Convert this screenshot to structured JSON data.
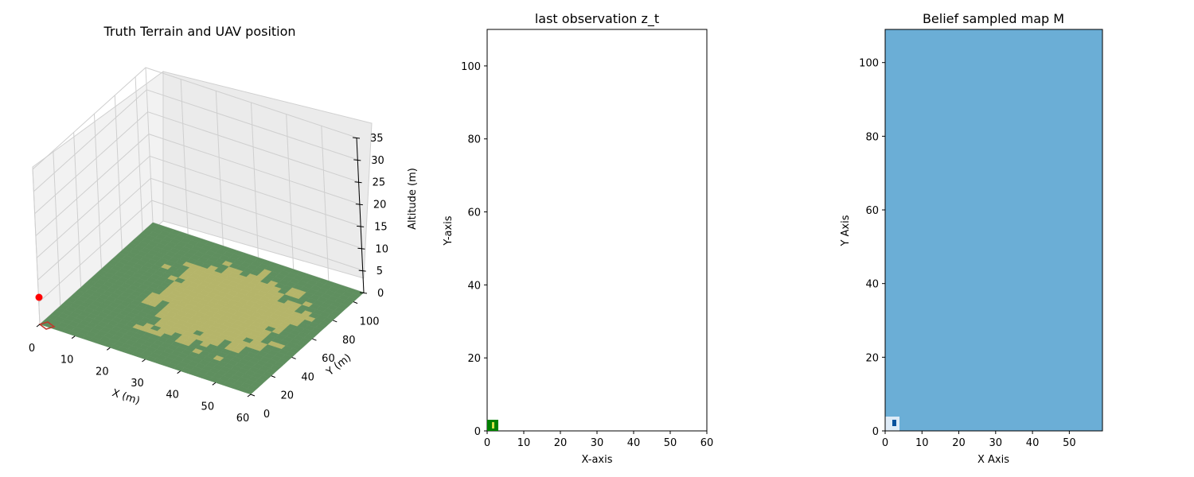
{
  "chart_data": [
    {
      "type": "surface3d",
      "title": "Truth Terrain and UAV position",
      "xlabel": "X (m)",
      "ylabel": "Y (m)",
      "zlabel": "Altitude (m)",
      "xlim": [
        0,
        60
      ],
      "ylim": [
        0,
        110
      ],
      "zlim": [
        0,
        35
      ],
      "xticks": [
        "0",
        "10",
        "20",
        "30",
        "40",
        "50",
        "60"
      ],
      "yticks": [
        "0",
        "20",
        "40",
        "60",
        "80",
        "100"
      ],
      "zticks": [
        "0",
        "5",
        "10",
        "15",
        "20",
        "25",
        "30",
        "35"
      ],
      "terrain_colors": {
        "field": "#b5b56a",
        "forest": "#5f8f5f"
      },
      "uav_position": {
        "x": 0,
        "y": 0,
        "z": 7.5,
        "color": "#ff0000"
      },
      "footprint": {
        "x": [
          0,
          3
        ],
        "y": [
          0,
          3
        ],
        "color": "#c0392b"
      },
      "grid": true
    },
    {
      "type": "heatmap",
      "title": "last observation z_t",
      "xlabel": "X-axis",
      "ylabel": "Y-axis",
      "xlim": [
        0,
        60
      ],
      "ylim": [
        0,
        110
      ],
      "xticks": [
        "0",
        "10",
        "20",
        "30",
        "40",
        "50",
        "60"
      ],
      "yticks": [
        "0",
        "20",
        "40",
        "60",
        "80",
        "100"
      ],
      "observed_patch": {
        "x": [
          0,
          3
        ],
        "y": [
          0,
          3
        ],
        "color": "#008000",
        "inner": {
          "x": [
            1.4,
            2.0
          ],
          "y": [
            0.6,
            2.2
          ],
          "color": "#d4e04a"
        }
      }
    },
    {
      "type": "heatmap",
      "title": "Belief sampled map M",
      "xlabel": "X Axis",
      "ylabel": "Y Axis",
      "xlim": [
        0,
        59
      ],
      "ylim": [
        0,
        109
      ],
      "xticks": [
        "0",
        "10",
        "20",
        "30",
        "40",
        "50"
      ],
      "yticks": [
        "0",
        "20",
        "40",
        "60",
        "80",
        "100"
      ],
      "background_color": "#6baed6",
      "patches": [
        {
          "x": [
            0,
            3
          ],
          "y": [
            0,
            3
          ],
          "color": "#deebf7"
        },
        {
          "x": [
            2,
            3
          ],
          "y": [
            1,
            2
          ],
          "color": "#08519c"
        }
      ]
    }
  ]
}
